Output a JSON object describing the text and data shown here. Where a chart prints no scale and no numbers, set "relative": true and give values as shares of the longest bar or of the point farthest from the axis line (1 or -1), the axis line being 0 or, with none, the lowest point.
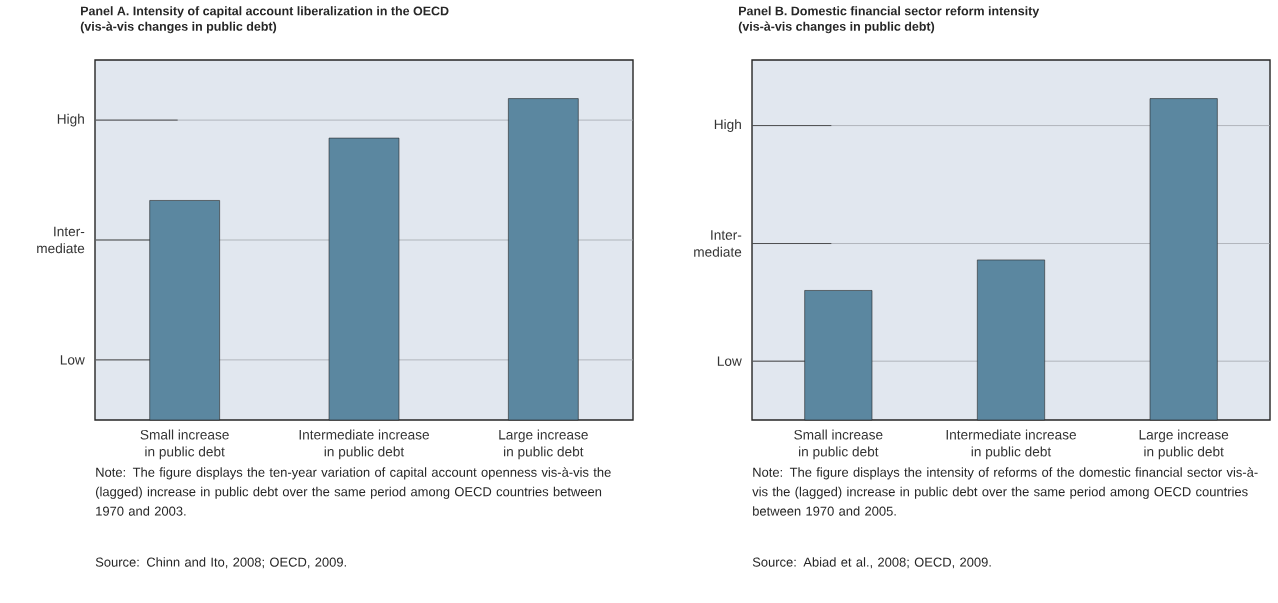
{
  "chart_data": [
    {
      "type": "bar",
      "title": "Panel A.  Intensity of capital account liberalization in the OECD",
      "subtitle": "(vis-à-vis changes in public debt)",
      "categories": [
        "Small increase in public debt",
        "Intermediate increase in public debt",
        "Large increase in public debt"
      ],
      "values": [
        0.683,
        0.877,
        1
      ],
      "color": "#5b87a0",
      "relative": true,
      "ref_lines": [
        {
          "axis": "y",
          "value": 0.187,
          "label": "Low",
          "color": "#a4a8ae"
        },
        {
          "axis": "y",
          "value": 0.56,
          "label": "Inter-mediate",
          "color": "#a4a8ae"
        },
        {
          "axis": "y",
          "value": 0.933,
          "label": "High",
          "color": "#a4a8ae"
        }
      ],
      "annotations": [
        "Note: The figure displays the ten-year variation of capital account openness vis-à-vis the (lagged) increase in public debt over the same period among OECD countries between 1970 and 2003.",
        "Source: Chinn and Ito, 2008; OECD, 2009."
      ]
    },
    {
      "type": "bar",
      "title": "Panel B.  Domestic financial sector reform intensity",
      "subtitle": "(vis-à-vis changes in public debt)",
      "categories": [
        "Small increase in public debt",
        "Intermediate increase in public debt",
        "Large increase in public debt"
      ],
      "values": [
        0.403,
        0.498,
        1
      ],
      "color": "#5b87a0",
      "relative": true,
      "ref_lines": [
        {
          "axis": "y",
          "value": 0.183,
          "label": "Low",
          "color": "#a4a8ae"
        },
        {
          "axis": "y",
          "value": 0.549,
          "label": "Inter-mediate",
          "color": "#a4a8ae"
        },
        {
          "axis": "y",
          "value": 0.916,
          "label": "High",
          "color": "#a4a8ae"
        }
      ],
      "annotations": [
        "Note: The figure displays the intensity of reforms of the domestic financial sector vis-à-vis the (lagged) increase in public debt over the same period among OECD countries between 1970 and 2005.",
        "Source: Abiad et al., 2008; OECD, 2009."
      ]
    }
  ]
}
